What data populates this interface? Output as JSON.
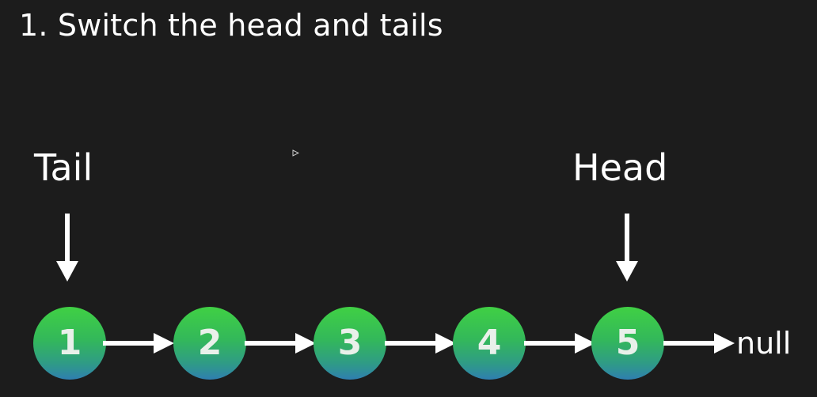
{
  "title": "1. Switch the head and tails",
  "pointers": {
    "tail": "Tail",
    "head": "Head"
  },
  "nodes": [
    "1",
    "2",
    "3",
    "4",
    "5"
  ],
  "terminal": "null",
  "colors": {
    "background": "#1c1c1c",
    "node_top": "#40d044",
    "node_bottom": "#2f7fb0",
    "arrow": "#ffffff",
    "text": "#ffffff"
  }
}
